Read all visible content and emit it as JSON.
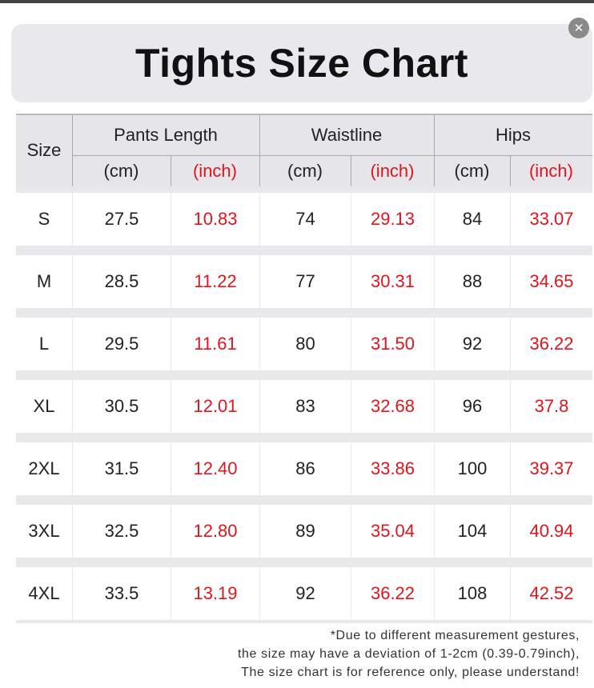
{
  "title": "Tights Size Chart",
  "table": {
    "header": {
      "size": "Size",
      "groups": [
        "Pants Length",
        "Waistline",
        "Hips"
      ],
      "units": [
        "(cm)",
        "(inch)",
        "(cm)",
        "(inch)",
        "(cm)",
        "(inch)"
      ]
    },
    "rows": [
      [
        "S",
        "27.5",
        "10.83",
        "74",
        "29.13",
        "84",
        "33.07"
      ],
      [
        "M",
        "28.5",
        "11.22",
        "77",
        "30.31",
        "88",
        "34.65"
      ],
      [
        "L",
        "29.5",
        "11.61",
        "80",
        "31.50",
        "92",
        "36.22"
      ],
      [
        "XL",
        "30.5",
        "12.01",
        "83",
        "32.68",
        "96",
        "37.8"
      ],
      [
        "2XL",
        "31.5",
        "12.40",
        "86",
        "33.86",
        "100",
        "39.37"
      ],
      [
        "3XL",
        "32.5",
        "12.80",
        "89",
        "35.04",
        "104",
        "40.94"
      ],
      [
        "4XL",
        "33.5",
        "13.19",
        "92",
        "36.22",
        "108",
        "42.52"
      ]
    ]
  },
  "footnote": [
    "*Due to different measurement gestures,",
    "the size may have a deviation of 1-2cm (0.39-0.79inch),",
    "The size chart is for reference only, please understand!"
  ]
}
